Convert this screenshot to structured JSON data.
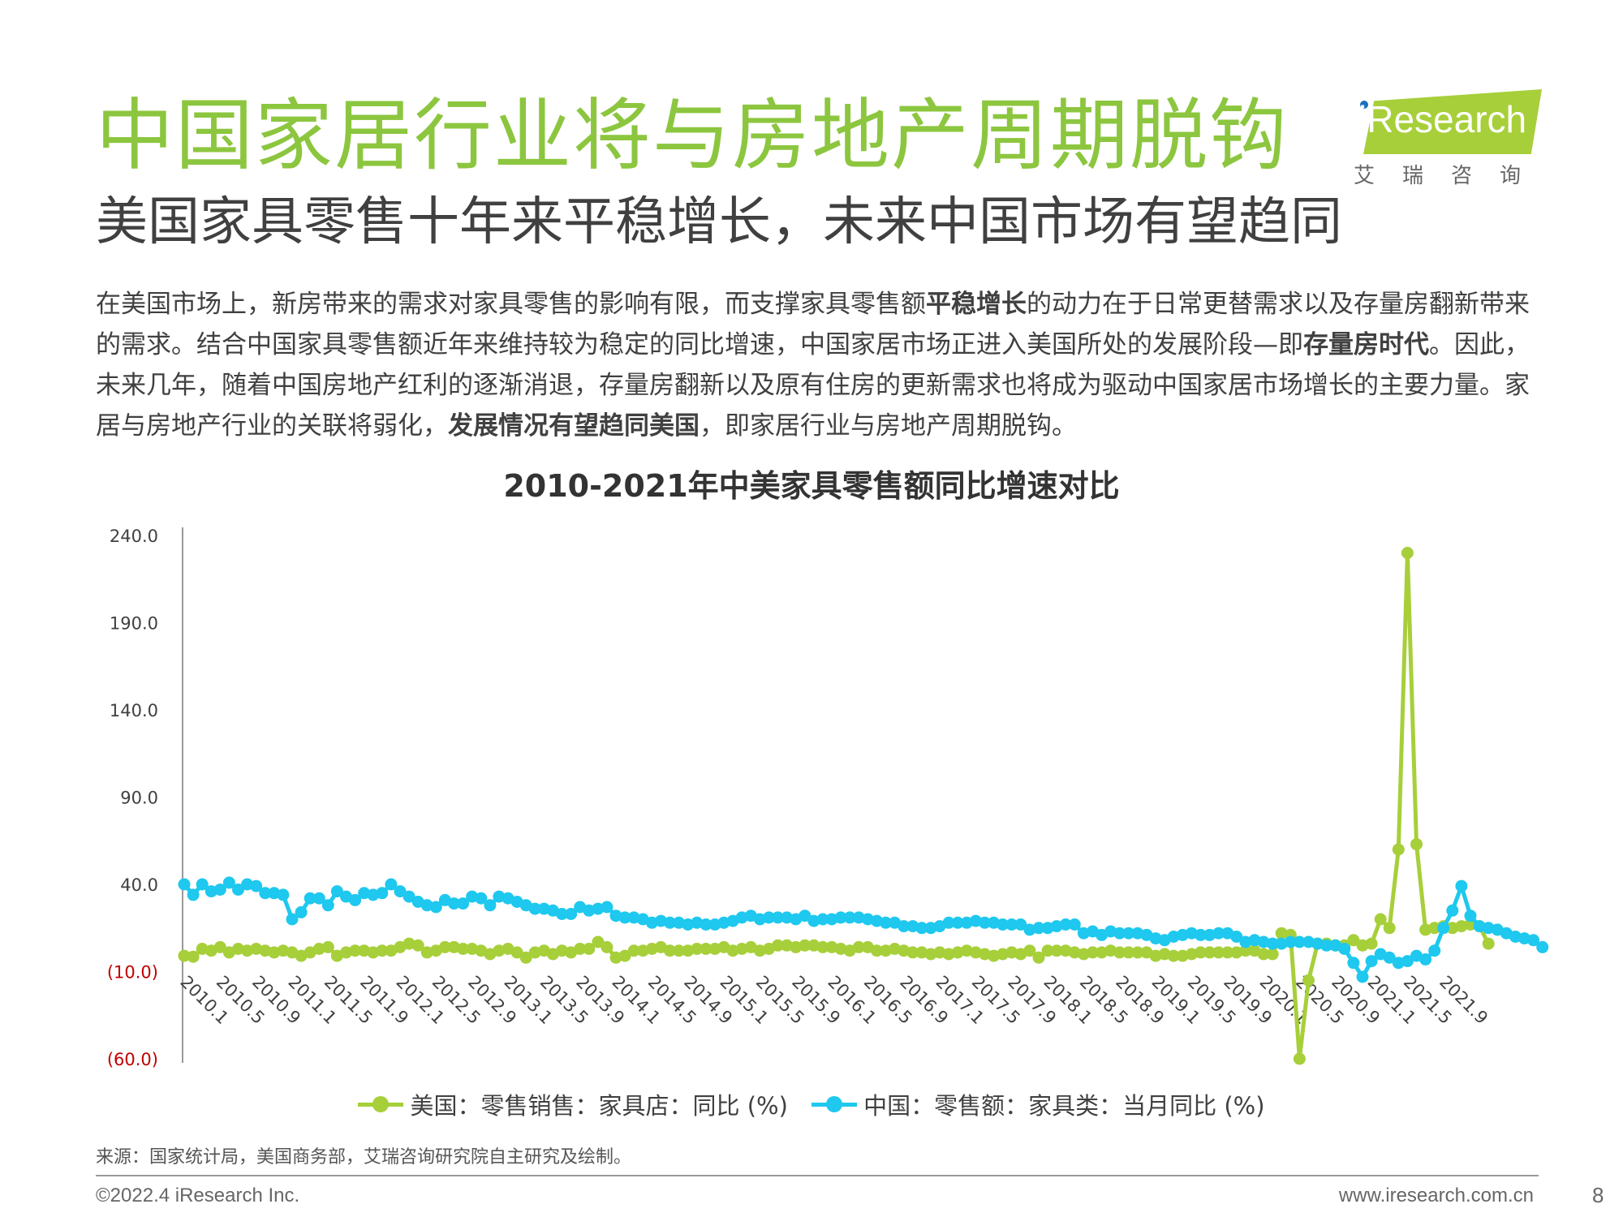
{
  "header": {
    "title": "中国家居行业将与房地产周期脱钩",
    "subtitle": "美国家具零售十年来平稳增长，未来中国市场有望趋同"
  },
  "logo": {
    "text": "iResearch",
    "cn": "艾瑞咨询"
  },
  "body": {
    "p1": "在美国市场上，新房带来的需求对家具零售的影响有限，而支撑家具零售额",
    "b1": "平稳增长",
    "p2": "的动力在于日常更替需求以及存量房翻新带来的需求。结合中国家具零售额近年来维持较为稳定的同比增速，中国家居市场正进入美国所处的发展阶段—即",
    "b2": "存量房时代",
    "p3": "。因此，未来几年，随着中国房地产红利的逐渐消退，存量房翻新以及原有住房的更新需求也将成为驱动中国家居市场增长的主要力量。家居与房地产行业的关联将弱化，",
    "b3": "发展情况有望趋同美国",
    "p4": "，即家居行业与房地产周期脱钩。"
  },
  "chart_data": {
    "type": "line",
    "title": "2010-2021年中美家具零售额同比增速对比",
    "y_ticks": [
      "240.0",
      "190.0",
      "140.0",
      "90.0",
      "40.0",
      "(10.0)",
      "(60.0)"
    ],
    "ylim": [
      -60,
      240
    ],
    "x_tick_labels": [
      "2010.1",
      "2010.5",
      "2010.9",
      "2011.1",
      "2011.5",
      "2011.9",
      "2012.1",
      "2012.5",
      "2012.9",
      "2013.1",
      "2013.5",
      "2013.9",
      "2014.1",
      "2014.5",
      "2014.9",
      "2015.1",
      "2015.5",
      "2015.9",
      "2016.1",
      "2016.5",
      "2016.9",
      "2017.1",
      "2017.5",
      "2017.9",
      "2018.1",
      "2018.5",
      "2018.9",
      "2019.1",
      "2019.5",
      "2019.9",
      "2020.1",
      "2020.5",
      "2020.9",
      "2021.1",
      "2021.5",
      "2021.9"
    ],
    "series": [
      {
        "name": "美国：零售销售：家具店：同比 (%)",
        "color": "#a7cf3a",
        "values": [
          -1,
          -1.5,
          3,
          2,
          4,
          1,
          3,
          2,
          3,
          2,
          1,
          2,
          1,
          -1,
          1,
          3,
          4,
          -1,
          1,
          2,
          2,
          1,
          2,
          2,
          4,
          6,
          5,
          1,
          2,
          4,
          4,
          3,
          3,
          2,
          0,
          2,
          3,
          1,
          -2,
          1,
          2,
          0,
          2,
          1,
          3,
          3,
          7,
          4,
          -2,
          -1,
          2,
          2,
          3,
          4,
          2,
          2,
          2,
          3,
          3,
          3,
          4,
          2,
          3,
          4,
          2,
          3,
          5,
          5,
          4,
          5,
          5,
          4,
          4,
          3,
          2,
          4,
          4,
          2,
          2,
          3,
          2,
          1,
          1,
          0,
          1,
          0,
          1,
          2,
          1,
          0,
          -1,
          0,
          1,
          0,
          2,
          -2,
          2,
          2,
          2,
          1,
          0,
          1,
          1,
          2,
          1,
          1,
          1,
          1,
          -1,
          0,
          -1,
          -1,
          0,
          1,
          1,
          1,
          1,
          1,
          2,
          2,
          0,
          0,
          12,
          11,
          -60,
          -15,
          6,
          6,
          5,
          5,
          8,
          5,
          6,
          20,
          15,
          60,
          230,
          63,
          14,
          15,
          16,
          15,
          16,
          17,
          16,
          6
        ],
        "start": 0
      },
      {
        "name": "中国：零售额：家具类：当月同比 (%)",
        "color": "#1ec8ee",
        "values": [
          40,
          34,
          40,
          36,
          37,
          41,
          37,
          40,
          39,
          35,
          35,
          34,
          20,
          24,
          32,
          32,
          28,
          36,
          33,
          31,
          35,
          34,
          35,
          40,
          36,
          33,
          30,
          28,
          27,
          31,
          29,
          29,
          33,
          32,
          28,
          33,
          32,
          30,
          28,
          26,
          26,
          25,
          23,
          23,
          27,
          25,
          26,
          27,
          22,
          21,
          21,
          20,
          18,
          19,
          18,
          18,
          17,
          18,
          17,
          17,
          18,
          19,
          21,
          22,
          20,
          21,
          21,
          21,
          20,
          22,
          19,
          20,
          20,
          21,
          21,
          21,
          20,
          19,
          18,
          18,
          16,
          16,
          15,
          15,
          16,
          18,
          18,
          18,
          19,
          18,
          18,
          17,
          17,
          17,
          14,
          15,
          15,
          16,
          17,
          17,
          12,
          13,
          11,
          13,
          12,
          12,
          12,
          11,
          9,
          8,
          10,
          11,
          12,
          11,
          11,
          12,
          12,
          10,
          7,
          8,
          7,
          6,
          6,
          7,
          7,
          7,
          6,
          5,
          5,
          3,
          -5,
          -13,
          -4,
          0,
          -2,
          -5,
          -4,
          -1,
          -3,
          2,
          15,
          25,
          39,
          22,
          16,
          15,
          14,
          12,
          10,
          9,
          8,
          4
        ]
      }
    ]
  },
  "footer": {
    "source": "来源：国家统计局，美国商务部，艾瑞咨询研究院自主研究及绘制。",
    "copyright": "©2022.4 iResearch Inc.",
    "website": "www.iresearch.com.cn",
    "page": "8"
  }
}
